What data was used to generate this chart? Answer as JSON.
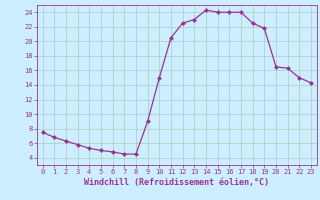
{
  "hours": [
    0,
    1,
    2,
    3,
    4,
    5,
    6,
    7,
    8,
    9,
    10,
    11,
    12,
    13,
    14,
    15,
    16,
    17,
    18,
    19,
    20,
    21,
    22,
    23
  ],
  "values": [
    7.5,
    6.8,
    6.3,
    5.8,
    5.3,
    5.0,
    4.8,
    4.5,
    4.5,
    9.0,
    15.0,
    20.5,
    22.5,
    23.0,
    24.3,
    24.0,
    24.0,
    24.0,
    22.5,
    21.8,
    16.5,
    16.3,
    15.0,
    14.3
  ],
  "line_color": "#993399",
  "marker": "D",
  "markersize": 2.0,
  "linewidth": 0.9,
  "xlabel": "Windchill (Refroidissement éolien,°C)",
  "xlabel_fontsize": 6.0,
  "bg_color": "#cceeff",
  "grid_color": "#aaccbb",
  "tick_color": "#993399",
  "label_color": "#993399",
  "ylim": [
    3,
    25
  ],
  "yticks": [
    4,
    6,
    8,
    10,
    12,
    14,
    16,
    18,
    20,
    22,
    24
  ],
  "xticks": [
    0,
    1,
    2,
    3,
    4,
    5,
    6,
    7,
    8,
    9,
    10,
    11,
    12,
    13,
    14,
    15,
    16,
    17,
    18,
    19,
    20,
    21,
    22,
    23
  ]
}
